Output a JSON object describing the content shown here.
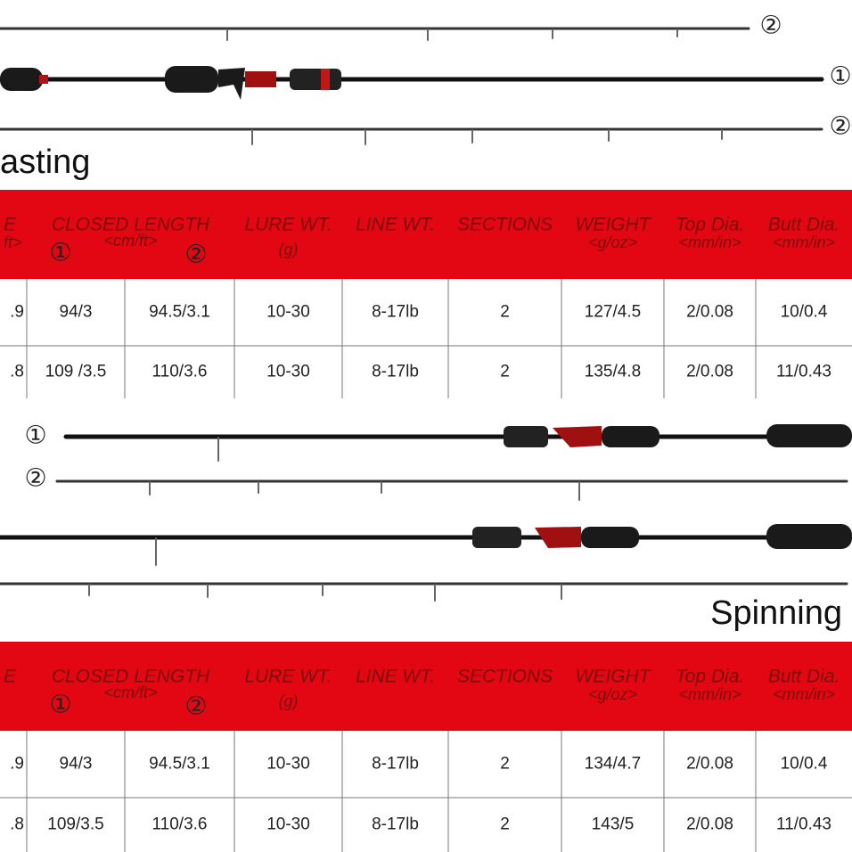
{
  "casting": {
    "title": "asting",
    "rod_labels": [
      "②",
      "①",
      "②"
    ],
    "table": {
      "headers": [
        {
          "title": "E",
          "unit": "ft>"
        },
        {
          "title": "CLOSED LENGTH",
          "unit": "<cm/ft>",
          "marks": [
            "①",
            "②"
          ]
        },
        {
          "title": "LURE WT.",
          "unit": "(g)"
        },
        {
          "title": "LINE WT."
        },
        {
          "title": "SECTIONS"
        },
        {
          "title": "WEIGHT",
          "unit": "<g/oz>"
        },
        {
          "title": "Top Dia.",
          "unit": "<mm/in>"
        },
        {
          "title": "Butt Dia.",
          "unit": "<mm/in>"
        }
      ],
      "rows": [
        [
          ".9",
          "94/3",
          "94.5/3.1",
          "10-30",
          "8-17lb",
          "2",
          "127/4.5",
          "2/0.08",
          "10/0.4"
        ],
        [
          ".8",
          "109 /3.5",
          "110/3.6",
          "10-30",
          "8-17lb",
          "2",
          "135/4.8",
          "2/0.08",
          "11/0.43"
        ]
      ]
    }
  },
  "spinning": {
    "title": "Spinning",
    "rod_labels": [
      "①",
      "②"
    ],
    "table": {
      "headers": [
        {
          "title": "E"
        },
        {
          "title": "CLOSED LENGTH",
          "unit": "<cm/ft>",
          "marks": [
            "①",
            "②"
          ]
        },
        {
          "title": "LURE WT.",
          "unit": "(g)"
        },
        {
          "title": "LINE WT."
        },
        {
          "title": "SECTIONS"
        },
        {
          "title": "WEIGHT",
          "unit": "<g/oz>"
        },
        {
          "title": "Top Dia.",
          "unit": "<mm/in>"
        },
        {
          "title": "Butt Dia.",
          "unit": "<mm/in>"
        }
      ],
      "rows": [
        [
          ".9",
          "94/3",
          "94.5/3.1",
          "10-30",
          "8-17lb",
          "2",
          "134/4.7",
          "2/0.08",
          "10/0.4"
        ],
        [
          ".8",
          "109/3.5",
          "110/3.6",
          "10-30",
          "8-17lb",
          "2",
          "143/5",
          "2/0.08",
          "11/0.43"
        ]
      ]
    }
  }
}
